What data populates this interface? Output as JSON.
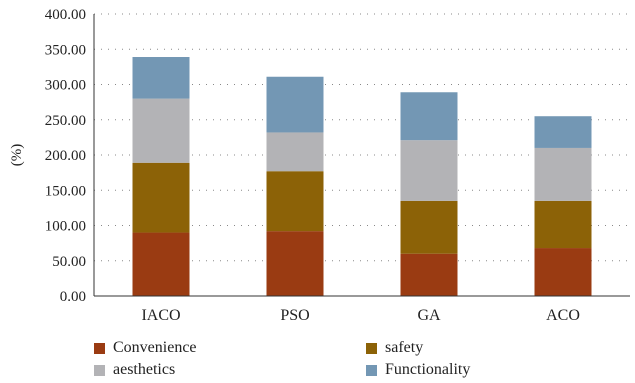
{
  "chart_data": {
    "type": "bar",
    "stacked": true,
    "categories": [
      "IACO",
      "PSO",
      "GA",
      "ACO"
    ],
    "series": [
      {
        "name": "Convenience",
        "color": "#9a3b12",
        "values": [
          90,
          92,
          60,
          68
        ]
      },
      {
        "name": "safety",
        "color": "#8c6207",
        "values": [
          99,
          85,
          75,
          67
        ]
      },
      {
        "name": "aesthetics",
        "color": "#b3b3b6",
        "values": [
          91,
          55,
          86,
          75
        ]
      },
      {
        "name": "Functionality",
        "color": "#7397b4",
        "values": [
          59,
          79,
          68,
          45
        ]
      }
    ],
    "title": "",
    "xlabel": "",
    "ylabel": "(%)",
    "ylim": [
      0,
      400
    ],
    "yticks": [
      "0.00",
      "50.00",
      "100.00",
      "150.00",
      "200.00",
      "250.00",
      "300.00",
      "350.00",
      "400.00"
    ],
    "grid": "horizontal-dotted",
    "legend_position": "bottom"
  }
}
